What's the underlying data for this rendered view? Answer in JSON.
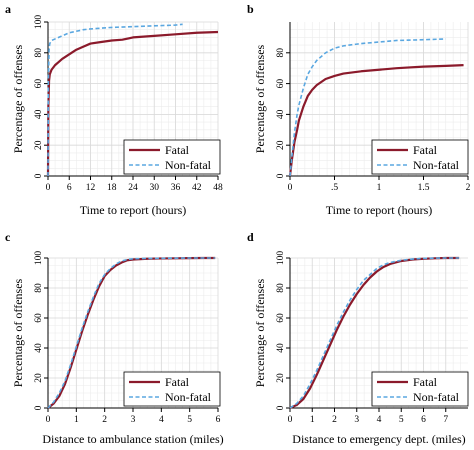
{
  "chart_data": [
    {
      "type": "line",
      "panel_label": "a",
      "xlabel": "Time to report (hours)",
      "ylabel": "Percentage of offenses",
      "xlim": [
        0,
        48
      ],
      "ylim": [
        0,
        100
      ],
      "xticks": [
        0,
        6,
        12,
        18,
        24,
        30,
        36,
        42,
        48
      ],
      "xtick_labels": [
        "0",
        "6",
        "12",
        "18",
        "24",
        "30",
        "36",
        "42",
        "48"
      ],
      "yticks": [
        0,
        20,
        40,
        60,
        80,
        100
      ],
      "ytick_labels": [
        "0",
        "20",
        "40",
        "60",
        "80",
        "100"
      ],
      "grid": true,
      "legend_position": "bottom-right",
      "series": [
        {
          "name": "Fatal",
          "color": "#8b1a2b",
          "style": "solid",
          "x": [
            0,
            0.1,
            0.3,
            0.5,
            1,
            2,
            3,
            4,
            6,
            8,
            10,
            12,
            15,
            18,
            21,
            24,
            30,
            36,
            42,
            48
          ],
          "y": [
            0,
            45,
            62,
            66,
            69,
            72,
            74,
            76,
            79,
            82,
            84,
            86,
            87,
            88,
            88.5,
            90,
            91,
            92,
            93,
            93.5
          ]
        },
        {
          "name": "Non-fatal",
          "color": "#5aa7e0",
          "style": "dashed",
          "x": [
            0,
            0.1,
            0.3,
            0.5,
            1,
            2,
            3,
            4,
            6,
            8,
            10,
            12,
            15,
            18,
            24,
            30,
            36,
            38
          ],
          "y": [
            0,
            60,
            82,
            86,
            88,
            89,
            90,
            91,
            93,
            94,
            95,
            95.5,
            96,
            96.5,
            97,
            97.5,
            98,
            98.5
          ]
        }
      ]
    },
    {
      "type": "line",
      "panel_label": "b",
      "xlabel": "Time to report (hours)",
      "ylabel": "Percentage of offenses",
      "xlim": [
        0,
        2
      ],
      "ylim": [
        0,
        100
      ],
      "xticks": [
        0,
        0.5,
        1,
        1.5,
        2
      ],
      "xtick_labels": [
        "0",
        ".5",
        "1",
        "1.5",
        "2"
      ],
      "yticks": [
        0,
        20,
        40,
        60,
        80
      ],
      "ytick_labels": [
        "0",
        "20",
        "40",
        "60",
        "80"
      ],
      "grid": true,
      "legend_position": "bottom-right",
      "series": [
        {
          "name": "Fatal",
          "color": "#8b1a2b",
          "style": "solid",
          "x": [
            0,
            0.02,
            0.05,
            0.08,
            0.1,
            0.15,
            0.2,
            0.25,
            0.3,
            0.4,
            0.5,
            0.6,
            0.8,
            1.0,
            1.2,
            1.5,
            1.75,
            1.95
          ],
          "y": [
            0,
            10,
            22,
            30,
            36,
            45,
            52,
            56,
            59,
            63,
            65,
            66.5,
            68,
            69,
            70,
            71,
            71.5,
            72
          ]
        },
        {
          "name": "Non-fatal",
          "color": "#5aa7e0",
          "style": "dashed",
          "x": [
            0,
            0.02,
            0.05,
            0.08,
            0.1,
            0.15,
            0.2,
            0.25,
            0.3,
            0.4,
            0.5,
            0.6,
            0.8,
            1.0,
            1.2,
            1.5,
            1.75
          ],
          "y": [
            0,
            12,
            28,
            40,
            46,
            57,
            66,
            71,
            75,
            80,
            83,
            84.5,
            86,
            87,
            88,
            88.5,
            89
          ]
        }
      ]
    },
    {
      "type": "line",
      "panel_label": "c",
      "xlabel": "Distance to ambulance station (miles)",
      "ylabel": "Percentage of offenses",
      "xlim": [
        0,
        6
      ],
      "ylim": [
        0,
        100
      ],
      "xticks": [
        0,
        1,
        2,
        3,
        4,
        5,
        6
      ],
      "xtick_labels": [
        "0",
        "1",
        "2",
        "3",
        "4",
        "5",
        "6"
      ],
      "yticks": [
        0,
        20,
        40,
        60,
        80,
        100
      ],
      "ytick_labels": [
        "0",
        "20",
        "40",
        "60",
        "80",
        "100"
      ],
      "grid": true,
      "legend_position": "bottom-right",
      "series": [
        {
          "name": "Fatal",
          "color": "#8b1a2b",
          "style": "solid",
          "x": [
            0,
            0.2,
            0.4,
            0.6,
            0.8,
            1.0,
            1.2,
            1.4,
            1.6,
            1.8,
            2.0,
            2.2,
            2.4,
            2.6,
            2.8,
            3.0,
            3.5,
            4.0,
            4.5,
            5.0,
            5.5,
            5.9
          ],
          "y": [
            0,
            3,
            8,
            16,
            27,
            39,
            51,
            62,
            72,
            81,
            88,
            92,
            95,
            97,
            98.5,
            99,
            99.5,
            99.7,
            99.8,
            99.9,
            100,
            100
          ]
        },
        {
          "name": "Non-fatal",
          "color": "#5aa7e0",
          "style": "dashed",
          "x": [
            0,
            0.2,
            0.4,
            0.6,
            0.8,
            1.0,
            1.2,
            1.4,
            1.6,
            1.8,
            2.0,
            2.2,
            2.4,
            2.6,
            2.8,
            3.0,
            3.5,
            4.0,
            4.5,
            5.0,
            5.5,
            5.9
          ],
          "y": [
            0,
            4,
            10,
            18,
            29,
            41,
            53,
            64,
            74,
            83,
            89,
            93,
            96,
            98,
            99,
            99.5,
            99.7,
            99.8,
            99.9,
            100,
            100,
            100
          ]
        }
      ]
    },
    {
      "type": "line",
      "panel_label": "d",
      "xlabel": "Distance to emergency dept. (miles)",
      "ylabel": "Percentage of offenses",
      "xlim": [
        0,
        8
      ],
      "ylim": [
        0,
        100
      ],
      "xticks": [
        0,
        1,
        2,
        3,
        4,
        5,
        6,
        7
      ],
      "xtick_labels": [
        "0",
        "1",
        "2",
        "3",
        "4",
        "5",
        "6",
        "7"
      ],
      "yticks": [
        0,
        20,
        40,
        60,
        80,
        100
      ],
      "ytick_labels": [
        "0",
        "20",
        "40",
        "60",
        "80",
        "100"
      ],
      "grid": true,
      "legend_position": "bottom-right",
      "series": [
        {
          "name": "Fatal",
          "color": "#8b1a2b",
          "style": "solid",
          "x": [
            0,
            0.3,
            0.6,
            0.9,
            1.2,
            1.5,
            1.8,
            2.1,
            2.4,
            2.7,
            3.0,
            3.3,
            3.6,
            3.9,
            4.2,
            4.5,
            5.0,
            5.5,
            6.0,
            6.5,
            7.0,
            7.6
          ],
          "y": [
            0,
            2,
            6,
            13,
            22,
            32,
            42,
            52,
            61,
            69,
            76,
            82,
            87,
            91,
            94,
            96,
            98,
            99,
            99.5,
            99.8,
            100,
            100
          ]
        },
        {
          "name": "Non-fatal",
          "color": "#5aa7e0",
          "style": "dashed",
          "x": [
            0,
            0.3,
            0.6,
            0.9,
            1.2,
            1.5,
            1.8,
            2.1,
            2.4,
            2.7,
            3.0,
            3.3,
            3.6,
            3.9,
            4.2,
            4.5,
            5.0,
            5.5,
            6.0,
            6.5,
            7.0,
            7.6
          ],
          "y": [
            0,
            3,
            8,
            16,
            25,
            35,
            45,
            55,
            64,
            72,
            79,
            85,
            89,
            93,
            95.5,
            97,
            98.5,
            99.3,
            99.7,
            99.9,
            100,
            100
          ]
        }
      ]
    }
  ]
}
